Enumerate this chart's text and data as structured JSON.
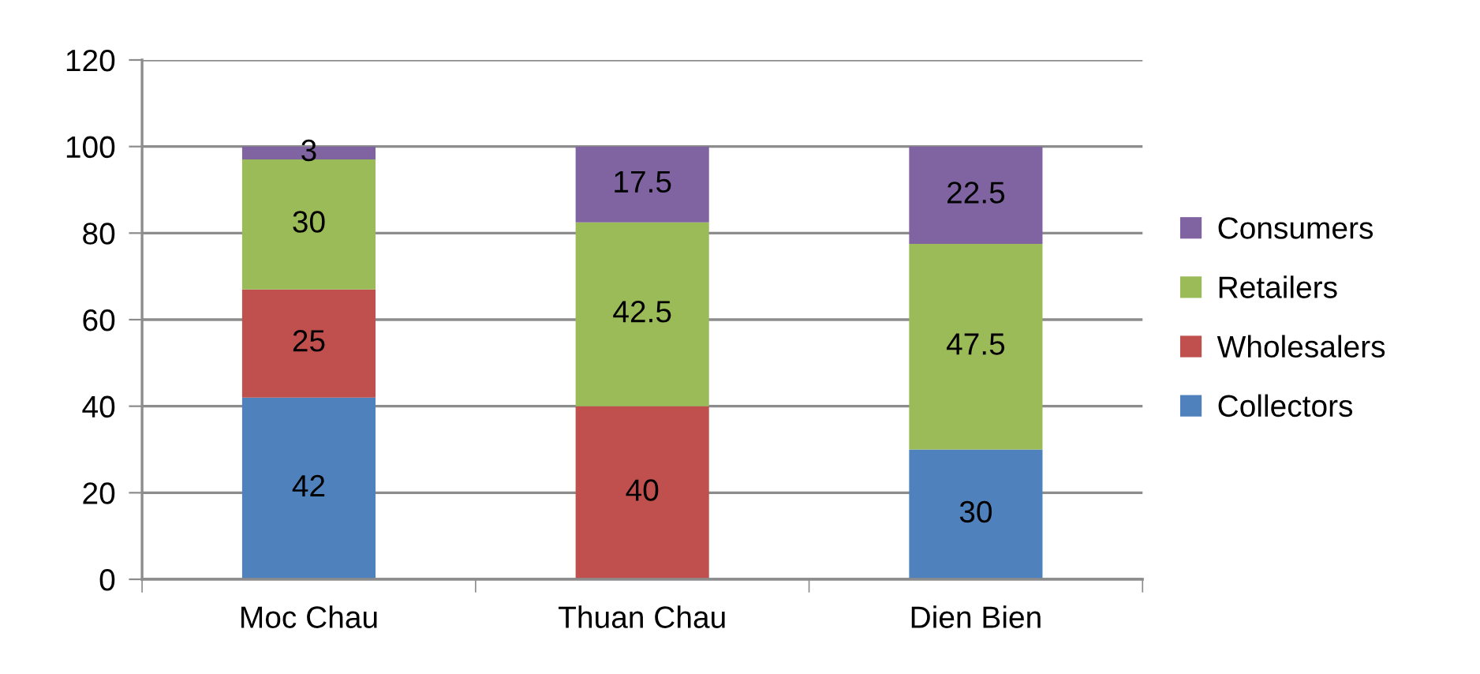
{
  "chart_data": {
    "type": "bar",
    "stacked": true,
    "data_labels": true,
    "grid": "y",
    "legend": "right",
    "categories": [
      "Moc Chau",
      "Thuan Chau",
      "Dien Bien"
    ],
    "series": [
      {
        "name": "Collectors",
        "color": "#4f81bd",
        "values": [
          42,
          null,
          30
        ]
      },
      {
        "name": "Wholesalers",
        "color": "#c0504d",
        "values": [
          25,
          40,
          null
        ]
      },
      {
        "name": "Retailers",
        "color": "#9bbb59",
        "values": [
          30,
          42.5,
          47.5
        ]
      },
      {
        "name": "Consumers",
        "color": "#8064a2",
        "values": [
          3,
          17.5,
          22.5
        ]
      }
    ],
    "ylim": [
      0,
      120
    ],
    "yticks": [
      0,
      20,
      40,
      60,
      80,
      100,
      120
    ]
  }
}
